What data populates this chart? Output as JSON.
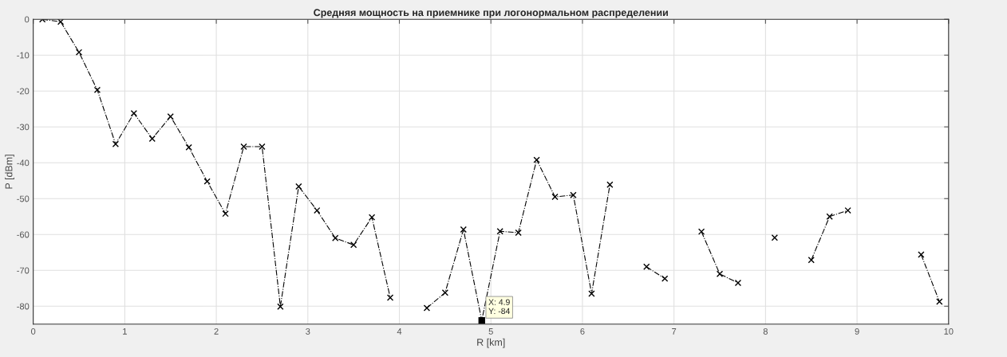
{
  "chart_data": {
    "type": "line",
    "title": "Средняя мощность на приемнике при логонормальном распределении",
    "xlabel": "R [km]",
    "ylabel": "P [dBm]",
    "x": [
      0.1,
      0.3,
      0.5,
      0.7,
      0.9,
      1.1,
      1.3,
      1.5,
      1.7,
      1.9,
      2.1,
      2.3,
      2.5,
      2.7,
      2.9,
      3.1,
      3.3,
      3.5,
      3.7,
      3.9,
      4.1,
      4.3,
      4.5,
      4.7,
      4.9,
      5.1,
      5.3,
      5.5,
      5.7,
      5.9,
      6.1,
      6.3,
      6.5,
      6.7,
      6.9,
      7.1,
      7.3,
      7.5,
      7.7,
      7.9,
      8.1,
      8.3,
      8.5,
      8.7,
      8.9,
      9.1,
      9.3,
      9.5,
      9.7,
      9.9
    ],
    "series": [
      {
        "color": "#000000",
        "values": [
          0,
          -0.7,
          -9.2,
          -19.7,
          -34.8,
          -26.2,
          -33.3,
          -27.1,
          -35.7,
          -45.2,
          -54.2,
          -35.5,
          -35.5,
          -80.1,
          -46.6,
          -53.3,
          -61,
          -62.9,
          -55.2,
          -77.6,
          null,
          -80.5,
          -76.2,
          -58.6,
          -84,
          -59.1,
          -59.5,
          -39.2,
          -49.5,
          -49,
          -76.5,
          -46.1,
          null,
          -69,
          -72.3,
          null,
          -59.2,
          -71,
          -73.5,
          null,
          -60.9,
          null,
          -67.1,
          -55,
          -53.3,
          null,
          null,
          null,
          -65.6,
          -78.7
        ]
      }
    ],
    "annotations": [
      {
        "text": "X: 4.9\nY: -84",
        "x": 4.9,
        "y": -84
      }
    ],
    "xlim": [
      0,
      10
    ],
    "xticks": [
      0,
      1,
      2,
      3,
      4,
      5,
      6,
      7,
      8,
      9,
      10
    ],
    "ylim": [
      -85,
      0
    ],
    "yticks": [
      -80,
      -70,
      -60,
      -50,
      -40,
      -30,
      -20,
      -10,
      0
    ],
    "grid": true,
    "marker": "cross",
    "line_style": "dashdot",
    "legend": false
  }
}
